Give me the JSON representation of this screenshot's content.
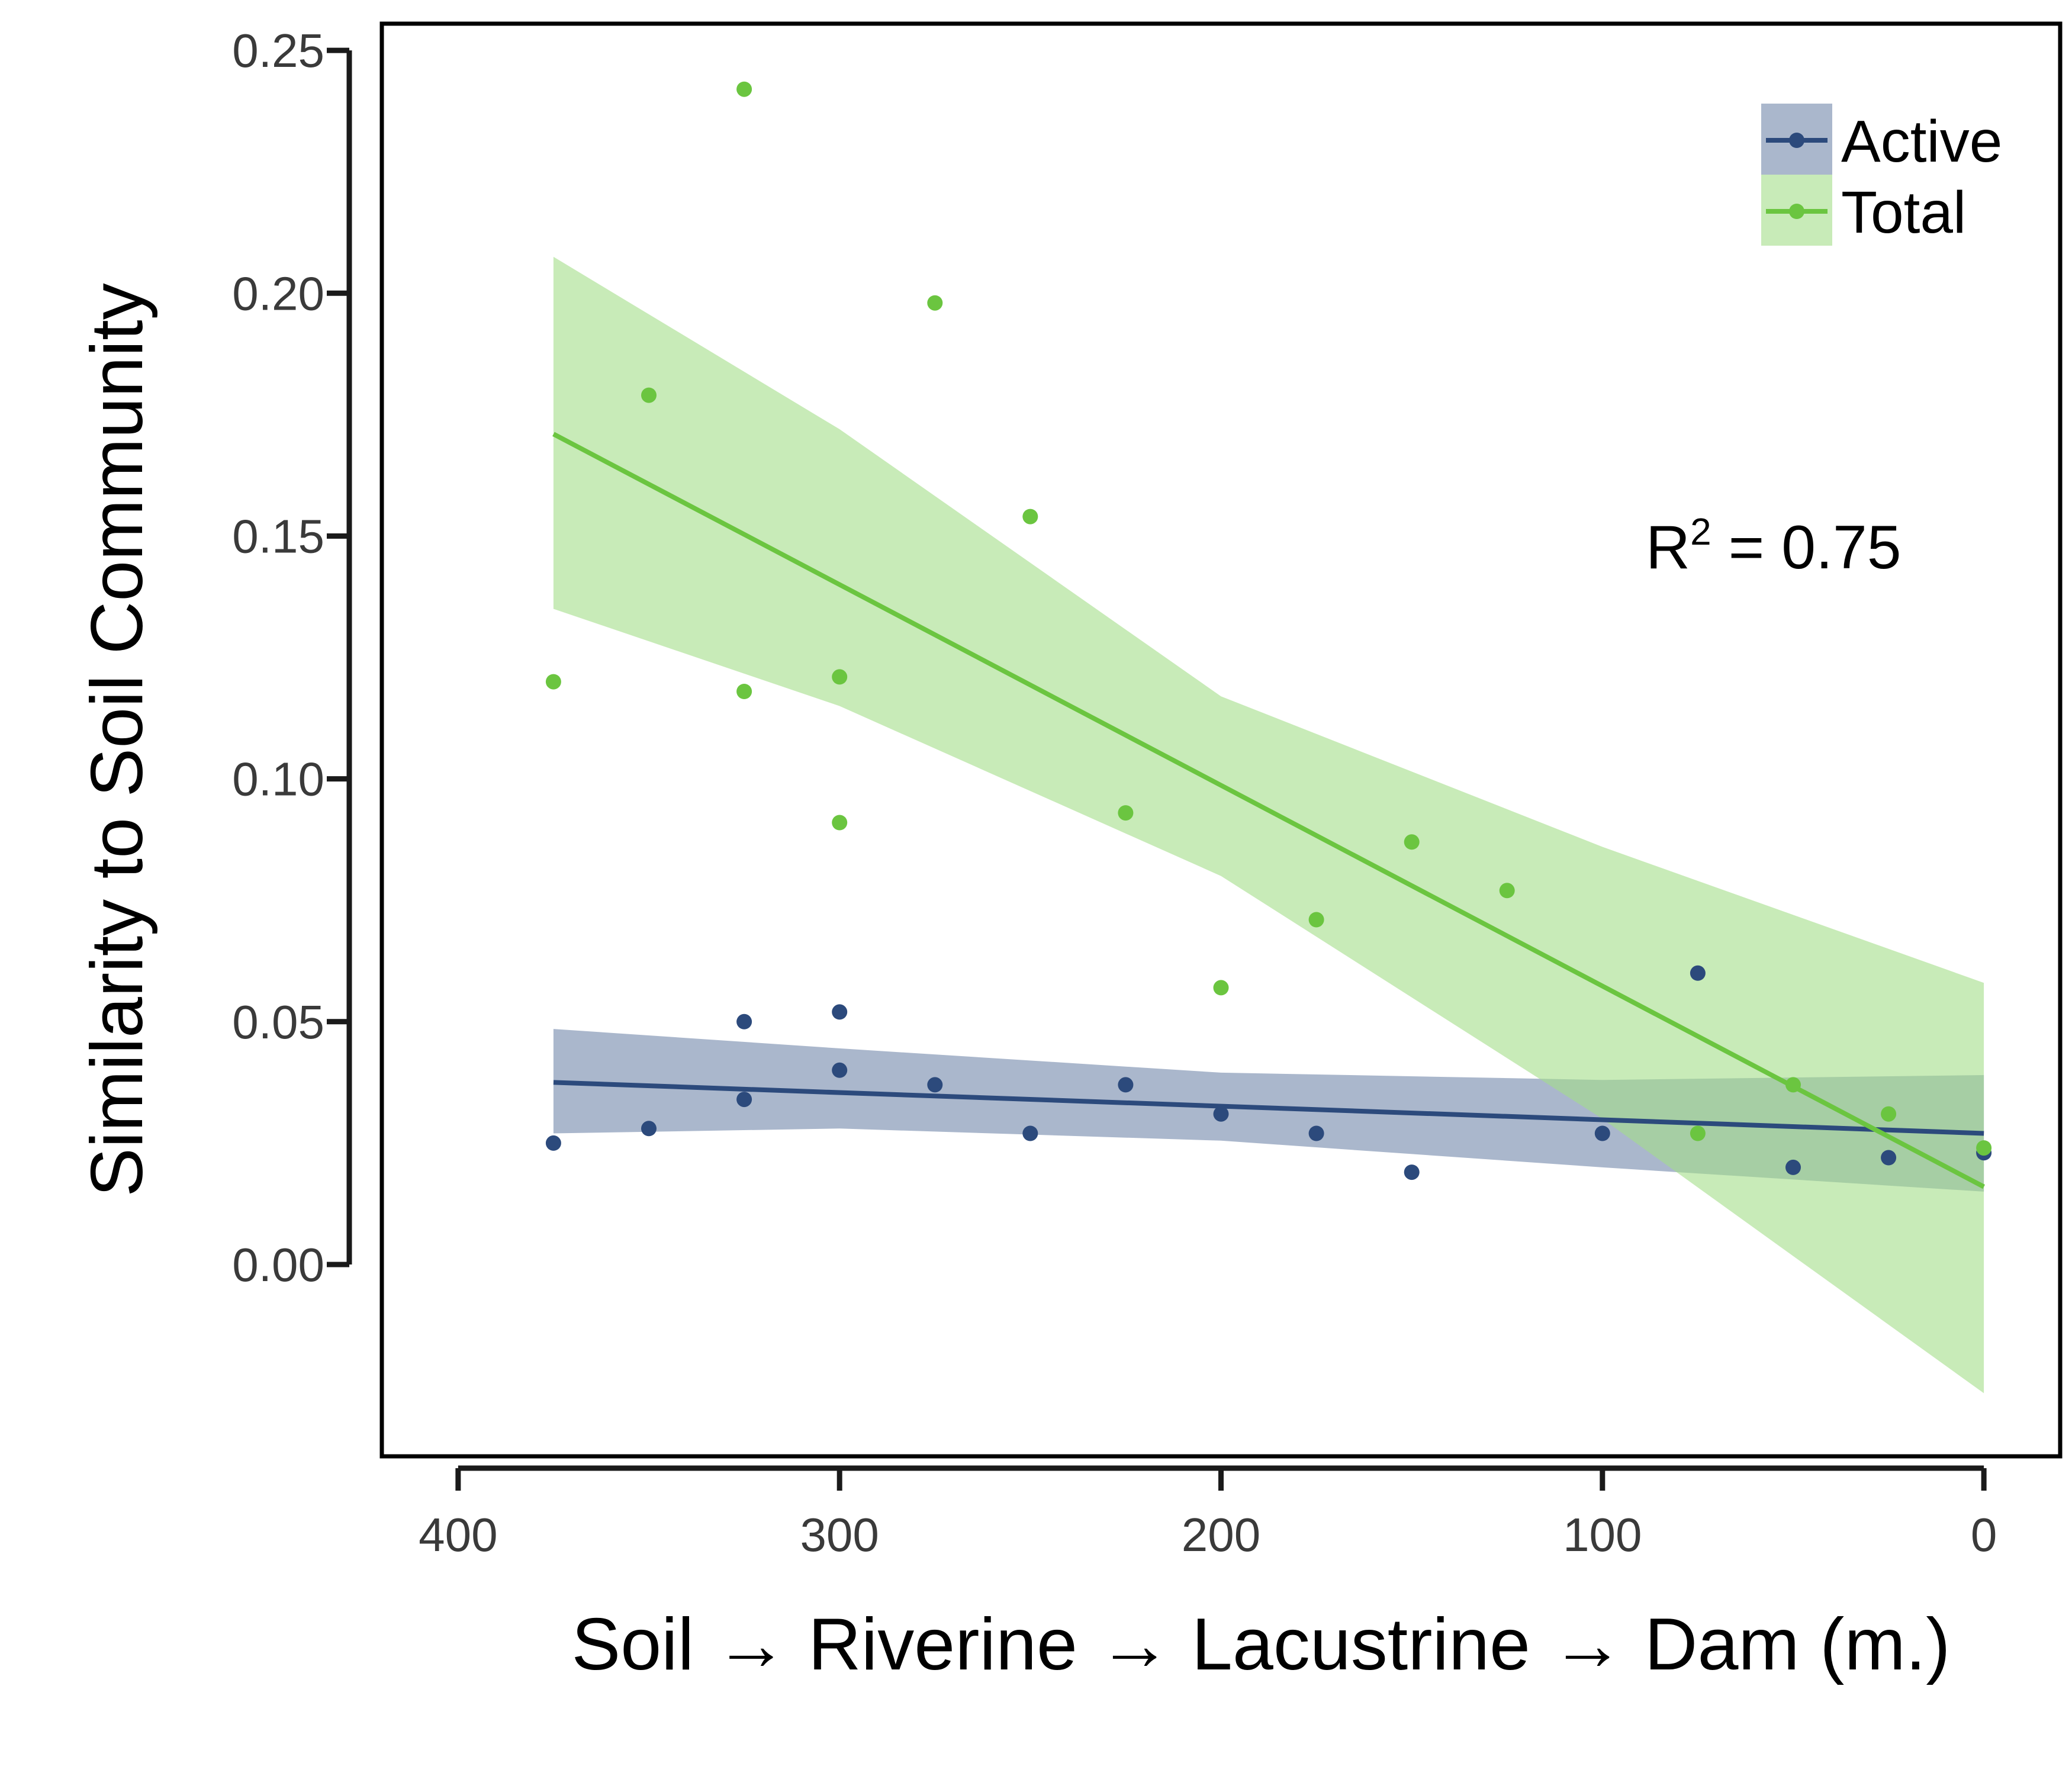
{
  "chart_data": {
    "type": "scatter",
    "xlabel": "Soil → Riverine → Lacustrine → Dam (m.)",
    "ylabel": "Similarity to Soil Community",
    "xlim": [
      420,
      -20
    ],
    "ylim": [
      -0.0395,
      0.2555
    ],
    "x_reversed": true,
    "x_ticks": [
      400,
      300,
      200,
      100,
      0
    ],
    "x_tick_labels": [
      "400",
      "300",
      "200",
      "100",
      "0"
    ],
    "y_ticks": [
      0.0,
      0.05,
      0.1,
      0.15,
      0.2,
      0.25
    ],
    "y_tick_labels": [
      "0.00",
      "0.05",
      "0.10",
      "0.15",
      "0.20",
      "0.25"
    ],
    "grid": false,
    "legend_position": "top-right",
    "annotation": {
      "base": "R",
      "superscript": "2",
      "rest": " = 0.75"
    },
    "series": [
      {
        "name": "Active",
        "color": "#2c4a7c",
        "band_color": "#7187aa",
        "points": [
          [
            375,
            0.025
          ],
          [
            350,
            0.028
          ],
          [
            325,
            0.034
          ],
          [
            325,
            0.05
          ],
          [
            300,
            0.04
          ],
          [
            300,
            0.052
          ],
          [
            275,
            0.037
          ],
          [
            250,
            0.027
          ],
          [
            225,
            0.037
          ],
          [
            200,
            0.031
          ],
          [
            175,
            0.027
          ],
          [
            150,
            0.019
          ],
          [
            100,
            0.027
          ],
          [
            75,
            0.06
          ],
          [
            50,
            0.02
          ],
          [
            25,
            0.022
          ],
          [
            0,
            0.023
          ]
        ],
        "fit": {
          "x": [
            375,
            0
          ],
          "y": [
            0.0375,
            0.027
          ]
        },
        "ci": {
          "x": [
            375,
            300,
            200,
            100,
            0
          ],
          "upper": [
            0.0485,
            0.0445,
            0.0395,
            0.038,
            0.039
          ],
          "lower": [
            0.027,
            0.028,
            0.0255,
            0.02,
            0.015
          ]
        }
      },
      {
        "name": "Total",
        "color": "#6bc540",
        "band_color": "#a3dd89",
        "points": [
          [
            375,
            0.12
          ],
          [
            350,
            0.179
          ],
          [
            325,
            0.242
          ],
          [
            325,
            0.118
          ],
          [
            300,
            0.121
          ],
          [
            300,
            0.091
          ],
          [
            275,
            0.198
          ],
          [
            250,
            0.154
          ],
          [
            225,
            0.093
          ],
          [
            200,
            0.057
          ],
          [
            175,
            0.071
          ],
          [
            150,
            0.087
          ],
          [
            125,
            0.077
          ],
          [
            75,
            0.027
          ],
          [
            50,
            0.037
          ],
          [
            25,
            0.031
          ],
          [
            0,
            0.024
          ]
        ],
        "fit": {
          "x": [
            375,
            0
          ],
          "y": [
            0.171,
            0.016
          ]
        },
        "ci": {
          "x": [
            375,
            300,
            200,
            100,
            0
          ],
          "upper": [
            0.2075,
            0.172,
            0.117,
            0.086,
            0.058
          ],
          "lower": [
            0.135,
            0.115,
            0.08,
            0.03,
            -0.0265
          ]
        }
      }
    ]
  }
}
